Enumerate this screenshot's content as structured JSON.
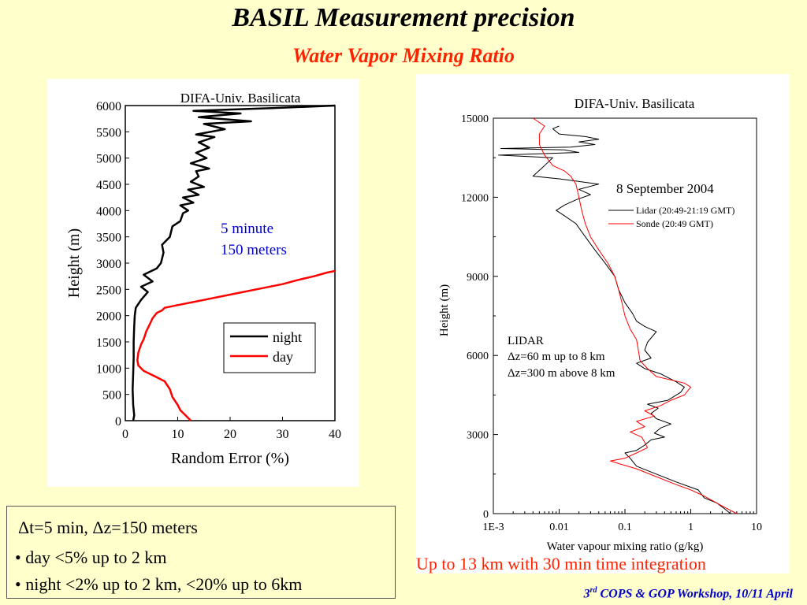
{
  "slide": {
    "title": "BASIL Measurement precision",
    "subtitle": "Water Vapor Mixing Ratio",
    "summary": {
      "heading": "Δt=5 min, Δz=150 meters",
      "bullet1": "• day <5% up to 2 km",
      "bullet2": "• night <2% up to 2 km, <20% up to 6km"
    },
    "highlight": "Up to 13 km with 30 min time integration",
    "footer": {
      "ordinal_number": "3",
      "ordinal_suffix": "rd",
      "text": " COPS & GOP Workshop, 10/11 April"
    },
    "colors": {
      "background": "#ffffcc",
      "title_red": "#ff2200",
      "footer_blue": "#0000cc"
    }
  },
  "chart_data": [
    {
      "type": "line",
      "title": "DIFA-Univ. Basilicata",
      "xlabel": "Random Error (%)",
      "ylabel": "Height (m)",
      "xlim": [
        0,
        40
      ],
      "ylim": [
        0,
        6000
      ],
      "xticks": [
        "0",
        "10",
        "20",
        "30",
        "40"
      ],
      "yticks": [
        "0",
        "500",
        "1000",
        "1500",
        "2000",
        "2500",
        "3000",
        "3500",
        "4000",
        "4500",
        "5000",
        "5500",
        "6000"
      ],
      "annotation": {
        "line1": "5 minute",
        "line2": "150 meters",
        "color": "#0000cc"
      },
      "legend_position": "inside lower-right",
      "series": [
        {
          "name": "night",
          "color": "#000000",
          "points": [
            [
              1.5,
              0
            ],
            [
              1.7,
              100
            ],
            [
              1.5,
              300
            ],
            [
              1.4,
              600
            ],
            [
              1.5,
              900
            ],
            [
              1.6,
              1200
            ],
            [
              1.6,
              1500
            ],
            [
              1.7,
              1800
            ],
            [
              1.8,
              2000
            ],
            [
              2.0,
              2150
            ],
            [
              3.0,
              2300
            ],
            [
              4.3,
              2450
            ],
            [
              3.0,
              2550
            ],
            [
              5.2,
              2650
            ],
            [
              3.5,
              2780
            ],
            [
              6.0,
              2900
            ],
            [
              6.8,
              3000
            ],
            [
              7.3,
              3200
            ],
            [
              7.0,
              3350
            ],
            [
              8.5,
              3500
            ],
            [
              9.0,
              3700
            ],
            [
              10.5,
              3800
            ],
            [
              11.0,
              3950
            ],
            [
              12.0,
              4000
            ],
            [
              10.5,
              4100
            ],
            [
              13.0,
              4150
            ],
            [
              11.0,
              4250
            ],
            [
              14.0,
              4300
            ],
            [
              12.0,
              4400
            ],
            [
              15.0,
              4450
            ],
            [
              12.5,
              4550
            ],
            [
              14.0,
              4650
            ],
            [
              13.5,
              4750
            ],
            [
              16.0,
              4800
            ],
            [
              12.5,
              4900
            ],
            [
              15.5,
              5000
            ],
            [
              13.5,
              5100
            ],
            [
              16.0,
              5200
            ],
            [
              14.0,
              5300
            ],
            [
              17.0,
              5400
            ],
            [
              13.5,
              5450
            ],
            [
              19.0,
              5550
            ],
            [
              15.0,
              5650
            ],
            [
              24.0,
              5700
            ],
            [
              14.0,
              5780
            ],
            [
              22.0,
              5850
            ],
            [
              13.0,
              5900
            ],
            [
              28.0,
              5950
            ],
            [
              40.0,
              6000
            ]
          ]
        },
        {
          "name": "day",
          "color": "#ff0000",
          "points": [
            [
              12.5,
              0
            ],
            [
              11.5,
              100
            ],
            [
              10.5,
              200
            ],
            [
              10.0,
              300
            ],
            [
              9.0,
              450
            ],
            [
              8.5,
              600
            ],
            [
              7.5,
              750
            ],
            [
              5.5,
              850
            ],
            [
              3.5,
              950
            ],
            [
              2.5,
              1050
            ],
            [
              2.3,
              1150
            ],
            [
              2.5,
              1300
            ],
            [
              3.0,
              1450
            ],
            [
              3.5,
              1550
            ],
            [
              4.0,
              1700
            ],
            [
              4.5,
              1800
            ],
            [
              5.2,
              1950
            ],
            [
              6.0,
              2050
            ],
            [
              7.0,
              2100
            ],
            [
              7.5,
              2150
            ],
            [
              10.0,
              2200
            ],
            [
              15.0,
              2300
            ],
            [
              20.0,
              2400
            ],
            [
              25.0,
              2500
            ],
            [
              30.0,
              2600
            ],
            [
              33.0,
              2680
            ],
            [
              36.0,
              2750
            ],
            [
              38.5,
              2820
            ],
            [
              40.0,
              2850
            ]
          ]
        }
      ]
    },
    {
      "type": "line",
      "title": "DIFA-Univ. Basilicata",
      "xlabel": "Water vapour mixing ratio (g/kg)",
      "ylabel": "Height (m)",
      "xscale": "log",
      "xlim": [
        0.001,
        10
      ],
      "ylim": [
        0,
        15000
      ],
      "xticks": [
        "1E-3",
        "0.01",
        "0.1",
        "1",
        "10"
      ],
      "yticks": [
        "0",
        "3000",
        "6000",
        "9000",
        "12000",
        "15000"
      ],
      "date_label": "8 September 2004",
      "annotation": {
        "line1": "LIDAR",
        "line2": "Δz=60 m up to 8 km",
        "line3": "Δz=300 m above 8 km"
      },
      "legend_position": "upper-right",
      "series": [
        {
          "name": "Lidar (20:49-21:19 GMT)",
          "color": "#000000",
          "points": [
            [
              4.0,
              0
            ],
            [
              3.2,
              200
            ],
            [
              2.5,
              400
            ],
            [
              1.6,
              600
            ],
            [
              1.3,
              900
            ],
            [
              1.0,
              1000
            ],
            [
              0.6,
              1200
            ],
            [
              0.3,
              1500
            ],
            [
              0.15,
              1800
            ],
            [
              0.12,
              2100
            ],
            [
              0.1,
              2300
            ],
            [
              0.15,
              2400
            ],
            [
              0.2,
              2600
            ],
            [
              0.25,
              2800
            ],
            [
              0.4,
              2900
            ],
            [
              0.28,
              3050
            ],
            [
              0.35,
              3250
            ],
            [
              0.5,
              3400
            ],
            [
              0.3,
              3600
            ],
            [
              0.25,
              3800
            ],
            [
              0.32,
              4000
            ],
            [
              0.22,
              4150
            ],
            [
              0.45,
              4300
            ],
            [
              0.7,
              4600
            ],
            [
              0.8,
              4800
            ],
            [
              0.6,
              5000
            ],
            [
              0.5,
              5100
            ],
            [
              0.35,
              5300
            ],
            [
              0.2,
              5500
            ],
            [
              0.15,
              5700
            ],
            [
              0.25,
              5900
            ],
            [
              0.2,
              6200
            ],
            [
              0.22,
              6500
            ],
            [
              0.3,
              6900
            ],
            [
              0.2,
              7100
            ],
            [
              0.15,
              7300
            ],
            [
              0.13,
              7600
            ],
            [
              0.1,
              8000
            ],
            [
              0.08,
              8500
            ],
            [
              0.07,
              9000
            ],
            [
              0.05,
              9500
            ],
            [
              0.035,
              10000
            ],
            [
              0.025,
              10500
            ],
            [
              0.018,
              11000
            ],
            [
              0.012,
              11300
            ],
            [
              0.009,
              11500
            ],
            [
              0.012,
              11700
            ],
            [
              0.018,
              11900
            ],
            [
              0.03,
              12100
            ],
            [
              0.02,
              12300
            ],
            [
              0.04,
              12500
            ],
            [
              0.01,
              12700
            ],
            [
              0.004,
              12800
            ],
            [
              0.006,
              13200
            ],
            [
              0.008,
              13500
            ],
            [
              0.0012,
              13600
            ],
            [
              0.02,
              13700
            ],
            [
              0.012,
              13800
            ],
            [
              0.0013,
              13850
            ],
            [
              0.015,
              13900
            ],
            [
              0.035,
              14000
            ],
            [
              0.02,
              14100
            ],
            [
              0.04,
              14200
            ],
            [
              0.025,
              14300
            ],
            [
              0.01,
              14400
            ],
            [
              0.008,
              14600
            ],
            [
              0.01,
              14700
            ]
          ]
        },
        {
          "name": "Sonde (20:49 GMT)",
          "color": "#ff0000",
          "points": [
            [
              5.0,
              0
            ],
            [
              3.5,
              200
            ],
            [
              2.5,
              400
            ],
            [
              1.5,
              700
            ],
            [
              1.0,
              900
            ],
            [
              0.6,
              1100
            ],
            [
              0.3,
              1400
            ],
            [
              0.15,
              1700
            ],
            [
              0.08,
              1900
            ],
            [
              0.06,
              2000
            ],
            [
              0.1,
              2100
            ],
            [
              0.15,
              2300
            ],
            [
              0.22,
              2500
            ],
            [
              0.2,
              2700
            ],
            [
              0.18,
              2900
            ],
            [
              0.12,
              3100
            ],
            [
              0.2,
              3300
            ],
            [
              0.15,
              3500
            ],
            [
              0.28,
              3700
            ],
            [
              0.2,
              3900
            ],
            [
              0.35,
              4100
            ],
            [
              0.5,
              4300
            ],
            [
              0.8,
              4500
            ],
            [
              1.0,
              4800
            ],
            [
              0.8,
              4950
            ],
            [
              0.3,
              5200
            ],
            [
              0.22,
              5500
            ],
            [
              0.17,
              5800
            ],
            [
              0.16,
              6200
            ],
            [
              0.15,
              6600
            ],
            [
              0.12,
              7000
            ],
            [
              0.1,
              7500
            ],
            [
              0.09,
              8000
            ],
            [
              0.08,
              8500
            ],
            [
              0.07,
              9000
            ],
            [
              0.055,
              9500
            ],
            [
              0.04,
              10000
            ],
            [
              0.03,
              10500
            ],
            [
              0.025,
              11000
            ],
            [
              0.022,
              11500
            ],
            [
              0.02,
              12000
            ],
            [
              0.018,
              12500
            ],
            [
              0.015,
              12800
            ],
            [
              0.012,
              13000
            ],
            [
              0.008,
              13200
            ],
            [
              0.006,
              13600
            ],
            [
              0.005,
              14000
            ],
            [
              0.005,
              14400
            ],
            [
              0.006,
              14700
            ],
            [
              0.004,
              15000
            ]
          ]
        }
      ]
    }
  ]
}
